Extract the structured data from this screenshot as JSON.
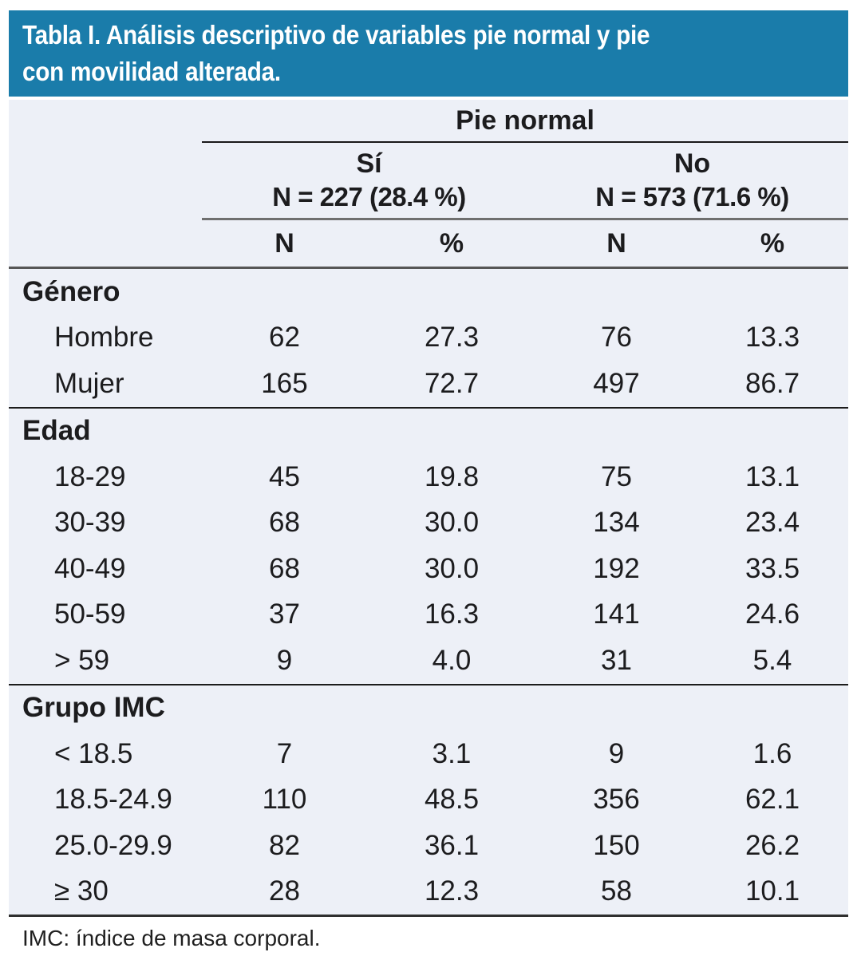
{
  "header": {
    "title_line1": "Tabla I. Análisis descriptivo de variables pie normal y pie",
    "title_line2": "con movilidad alterada."
  },
  "table": {
    "group_header": "Pie normal",
    "col_groups": [
      {
        "label": "Sí",
        "sublabel": "N = 227 (28.4 %)"
      },
      {
        "label": "No",
        "sublabel": "N = 573 (71.6 %)"
      }
    ],
    "sub_headers": [
      "N",
      "%",
      "N",
      "%"
    ],
    "sections": [
      {
        "title": "Género",
        "rows": [
          {
            "label": "Hombre",
            "values": [
              "62",
              "27.3",
              "76",
              "13.3"
            ]
          },
          {
            "label": "Mujer",
            "values": [
              "165",
              "72.7",
              "497",
              "86.7"
            ]
          }
        ]
      },
      {
        "title": "Edad",
        "rows": [
          {
            "label": "18-29",
            "values": [
              "45",
              "19.8",
              "75",
              "13.1"
            ]
          },
          {
            "label": "30-39",
            "values": [
              "68",
              "30.0",
              "134",
              "23.4"
            ]
          },
          {
            "label": "40-49",
            "values": [
              "68",
              "30.0",
              "192",
              "33.5"
            ]
          },
          {
            "label": "50-59",
            "values": [
              "37",
              "16.3",
              "141",
              "24.6"
            ]
          },
          {
            "label": "> 59",
            "values": [
              "9",
              "4.0",
              "31",
              "5.4"
            ]
          }
        ]
      },
      {
        "title": "Grupo IMC",
        "rows": [
          {
            "label": "< 18.5",
            "values": [
              "7",
              "3.1",
              "9",
              "1.6"
            ]
          },
          {
            "label": "18.5-24.9",
            "values": [
              "110",
              "48.5",
              "356",
              "62.1"
            ]
          },
          {
            "label": "25.0-29.9",
            "values": [
              "82",
              "36.1",
              "150",
              "26.2"
            ]
          },
          {
            "label": "≥ 30",
            "values": [
              "28",
              "12.3",
              "58",
              "10.1"
            ]
          }
        ]
      }
    ]
  },
  "footnote": "IMC: índice de masa corporal.",
  "colors": {
    "header_bg": "#1a7caa",
    "body_bg": "#edf0f7",
    "rule_dark": "#191919",
    "rule_gray": "#6f6f6f"
  }
}
